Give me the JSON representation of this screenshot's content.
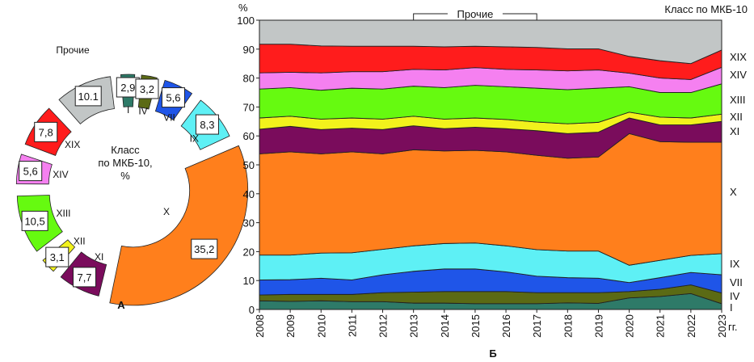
{
  "chart_data": [
    {
      "type": "pie",
      "variant": "exploded-donut",
      "panel_label": "А",
      "center_label": [
        "Класс",
        "по МКБ-10,",
        "%"
      ],
      "slices": [
        {
          "label": "I",
          "value": 2.9,
          "value_text": "2,9",
          "color": "#2e7a68"
        },
        {
          "label": "IV",
          "value": 3.2,
          "value_text": "3,2",
          "color": "#5b6a14"
        },
        {
          "label": "VII",
          "value": 5.6,
          "value_text": "5,6",
          "color": "#1f55e8"
        },
        {
          "label": "IX",
          "value": 8.3,
          "value_text": "8,3",
          "color": "#5ef0f5"
        },
        {
          "label": "X",
          "value": 35.2,
          "value_text": "35,2",
          "color": "#ff7f1c"
        },
        {
          "label": "XI",
          "value": 7.7,
          "value_text": "7,7",
          "color": "#7a0c5c"
        },
        {
          "label": "XII",
          "value": 3.1,
          "value_text": "3,1",
          "color": "#f2f21c"
        },
        {
          "label": "XIII",
          "value": 10.5,
          "value_text": "10,5",
          "color": "#66fa10"
        },
        {
          "label": "XIV",
          "value": 5.6,
          "value_text": "5,6",
          "color": "#f580f0"
        },
        {
          "label": "XIX",
          "value": 7.8,
          "value_text": "7,8",
          "color": "#ff1c1c"
        },
        {
          "label": "Прочие",
          "value": 10.1,
          "value_text": "10.1",
          "color": "#c2c6c6"
        }
      ]
    },
    {
      "type": "area",
      "stacked": true,
      "panel_label": "Б",
      "title": "Класс по МКБ-10",
      "ylabel": "%",
      "xlabel": "гг.",
      "ylim": [
        0,
        100
      ],
      "yticks": [
        0,
        10,
        20,
        30,
        40,
        50,
        60,
        70,
        80,
        90,
        100
      ],
      "x": [
        2008,
        2009,
        2010,
        2011,
        2012,
        2013,
        2014,
        2015,
        2016,
        2017,
        2018,
        2019,
        2020,
        2021,
        2022,
        2023
      ],
      "annotation": "Прочие",
      "series": [
        {
          "name": "I",
          "color": "#2e7a68",
          "values": [
            3,
            2.8,
            3,
            2.7,
            2.7,
            2.2,
            2.2,
            2,
            2,
            2,
            2.3,
            2.1,
            4,
            4.5,
            5.5,
            2
          ]
        },
        {
          "name": "IV",
          "color": "#5b6a14",
          "values": [
            2,
            2.4,
            2.2,
            2.5,
            3.1,
            3.8,
            4,
            4.2,
            4.2,
            3.8,
            3.5,
            3.7,
            2.2,
            2.5,
            3,
            3.7
          ]
        },
        {
          "name": "VII",
          "color": "#1f55e8",
          "values": [
            5.2,
            5.1,
            5.6,
            5,
            6.2,
            7.2,
            7.8,
            7.8,
            6.8,
            5.7,
            5.2,
            5,
            3.1,
            4,
            4.3,
            6.3
          ]
        },
        {
          "name": "IX",
          "color": "#5ef0f5",
          "values": [
            8.6,
            8.5,
            8.7,
            9.4,
            8.8,
            8.8,
            8.8,
            9,
            9,
            9.2,
            9.2,
            9.4,
            6,
            6,
            5.9,
            7.3
          ]
        },
        {
          "name": "X",
          "color": "#ff7f1c",
          "values": [
            35,
            35.7,
            34.3,
            34.9,
            33,
            33.2,
            32,
            32,
            32.5,
            32.6,
            32.1,
            32.5,
            45.5,
            41,
            39.1,
            38.5
          ]
        },
        {
          "name": "XI",
          "color": "#7a0c5c",
          "values": [
            8.5,
            8.8,
            8.4,
            8.2,
            8.4,
            8.3,
            7.7,
            8,
            8,
            8.5,
            8.5,
            8.6,
            5.4,
            5.8,
            6,
            7.2
          ]
        },
        {
          "name": "XII",
          "color": "#f2f21c",
          "values": [
            3.9,
            3.5,
            3.6,
            3.5,
            3.6,
            3.3,
            3.3,
            3.2,
            3.2,
            3,
            3.4,
            3.4,
            2,
            2.7,
            2.4,
            2.5
          ]
        },
        {
          "name": "XIII",
          "color": "#66fa10",
          "values": [
            10,
            9.9,
            10,
            10.3,
            10.4,
            10.4,
            10.9,
            11.3,
            11.3,
            11.7,
            11.8,
            11.8,
            8.8,
            8.5,
            8.8,
            10.5
          ]
        },
        {
          "name": "XIV",
          "color": "#f580f0",
          "values": [
            5.6,
            5.3,
            6,
            5.7,
            6,
            5.8,
            6.1,
            6.1,
            6,
            6.3,
            6.5,
            6.3,
            4.7,
            5,
            4.5,
            5.7
          ]
        },
        {
          "name": "XIX",
          "color": "#ff1c1c",
          "values": [
            9.9,
            9.7,
            9.3,
            8.8,
            8.8,
            8,
            8,
            7.4,
            7.8,
            7.8,
            7.6,
            7.3,
            5.8,
            6,
            5.5,
            6
          ]
        },
        {
          "name": "Прочие",
          "color": "#c2c6c6",
          "values": [
            8.3,
            8.3,
            8.9,
            9,
            9,
            9,
            9.2,
            9,
            9.2,
            9.4,
            9.9,
            9.9,
            12.5,
            14,
            15,
            10.3
          ]
        }
      ]
    }
  ]
}
